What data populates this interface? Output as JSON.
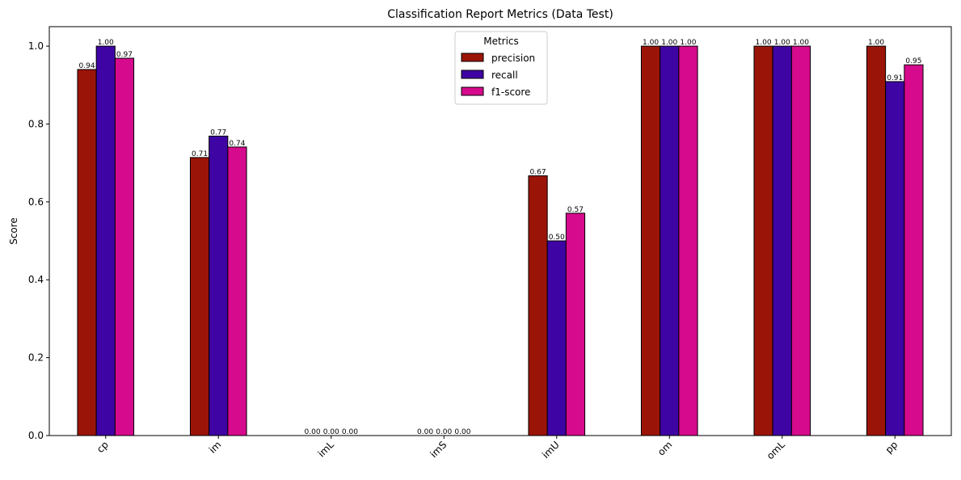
{
  "chart_data": {
    "type": "bar",
    "title": "Classification Report Metrics (Data Test)",
    "xlabel": "",
    "ylabel": "Score",
    "ylim": [
      0,
      1.05
    ],
    "yticks": [
      "0.0",
      "0.2",
      "0.4",
      "0.6",
      "0.8",
      "1.0"
    ],
    "ytick_values": [
      0,
      0.2,
      0.4,
      0.6,
      0.8,
      1.0
    ],
    "categories": [
      "cp",
      "im",
      "imL",
      "imS",
      "imU",
      "om",
      "omL",
      "pp"
    ],
    "series": [
      {
        "name": "precision",
        "color": "#9b1408",
        "values": [
          0.94,
          0.714,
          0.0,
          0.0,
          0.667,
          1.0,
          1.0,
          1.0
        ],
        "labels": [
          "0.94",
          "0.71",
          "0.00",
          "0.00",
          "0.67",
          "1.00",
          "1.00",
          "1.00"
        ]
      },
      {
        "name": "recall",
        "color": "#3f04a4",
        "values": [
          1.0,
          0.769,
          0.0,
          0.0,
          0.5,
          1.0,
          1.0,
          0.909
        ],
        "labels": [
          "1.00",
          "0.77",
          "0.00",
          "0.00",
          "0.50",
          "1.00",
          "1.00",
          "0.91"
        ]
      },
      {
        "name": "f1-score",
        "color": "#d60a8c",
        "values": [
          0.969,
          0.741,
          0.0,
          0.0,
          0.571,
          1.0,
          1.0,
          0.952
        ],
        "labels": [
          "0.97",
          "0.74",
          "0.00",
          "0.00",
          "0.57",
          "1.00",
          "1.00",
          "0.95"
        ]
      }
    ],
    "legend": {
      "title": "Metrics",
      "placement": "top-center"
    },
    "grid": false
  }
}
